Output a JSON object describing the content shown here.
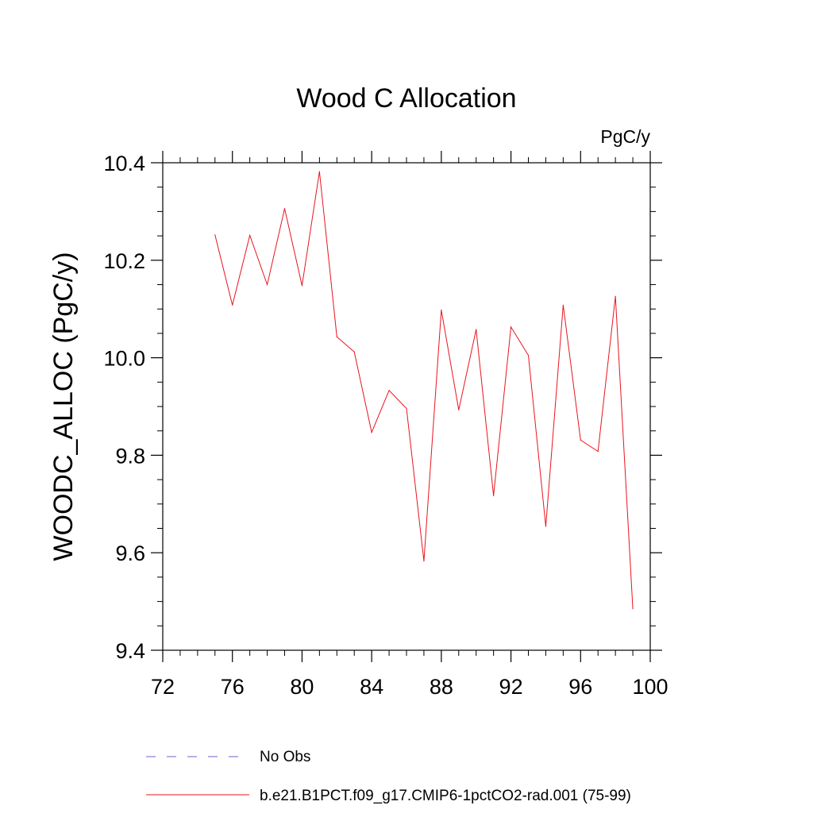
{
  "chart_data": {
    "type": "line",
    "title": "Wood C Allocation",
    "units_label": "PgC/y",
    "xlabel": "",
    "ylabel": "WOODC_ALLOC  (PgC/y)",
    "xlim": [
      72,
      100
    ],
    "ylim": [
      9.4,
      10.4
    ],
    "xticks": [
      "72",
      "76",
      "80",
      "84",
      "88",
      "92",
      "96",
      "100"
    ],
    "yticks": [
      "9.4",
      "9.6",
      "9.8",
      "10.0",
      "10.2",
      "10.4"
    ],
    "grid": false,
    "legend_position": "bottom",
    "series": [
      {
        "name": "No Obs",
        "style": "dashed",
        "color": "#6666cc",
        "x": [],
        "y": []
      },
      {
        "name": "b.e21.B1PCT.f09_g17.CMIP6-1pctCO2-rad.001 (75-99)",
        "style": "solid",
        "color": "#e8141e",
        "x": [
          75,
          76,
          77,
          78,
          79,
          80,
          81,
          82,
          83,
          84,
          85,
          86,
          87,
          88,
          89,
          90,
          91,
          92,
          93,
          94,
          95,
          96,
          97,
          98,
          99
        ],
        "y": [
          10.252,
          10.108,
          10.251,
          10.15,
          10.306,
          10.148,
          10.382,
          10.043,
          10.012,
          9.847,
          9.933,
          9.896,
          9.583,
          10.098,
          9.893,
          10.058,
          9.717,
          10.063,
          10.005,
          9.654,
          10.108,
          9.831,
          9.808,
          10.126,
          9.485
        ]
      }
    ]
  }
}
